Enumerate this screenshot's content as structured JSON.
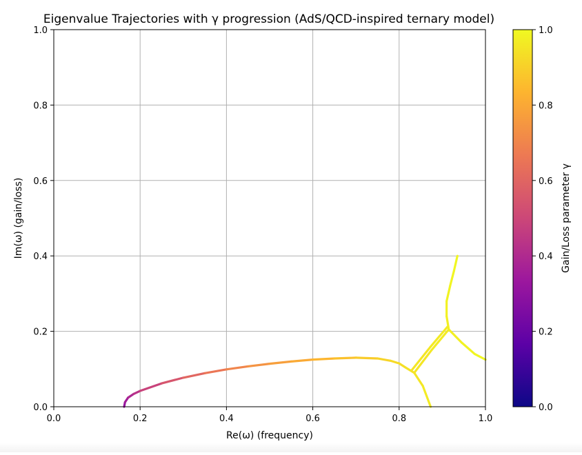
{
  "chart_data": {
    "type": "line",
    "title": "Eigenvalue Trajectories with γ progression (AdS/QCD-inspired ternary model)",
    "xlabel": "Re(ω)  (frequency)",
    "ylabel": "Im(ω)  (gain/loss)",
    "xlim": [
      0.0,
      1.0
    ],
    "ylim": [
      0.0,
      1.0
    ],
    "xticks": [
      "0.0",
      "0.2",
      "0.4",
      "0.6",
      "0.8",
      "1.0"
    ],
    "yticks": [
      "0.0",
      "0.2",
      "0.4",
      "0.6",
      "0.8",
      "1.0"
    ],
    "grid": true,
    "colorbar": {
      "label": "Gain/Loss parameter γ",
      "range": [
        0.0,
        1.0
      ],
      "ticks": [
        "0.0",
        "0.2",
        "0.4",
        "0.6",
        "0.8",
        "1.0"
      ],
      "colormap": "plasma",
      "colors": [
        "#0d0887",
        "#5c01a6",
        "#9c179e",
        "#cc4778",
        "#ed7953",
        "#fdb42f",
        "#f0f921"
      ]
    },
    "series": [
      {
        "points": [
          [
            0.163,
            0.0,
            0.3
          ],
          [
            0.165,
            0.012,
            0.33
          ],
          [
            0.172,
            0.024,
            0.37
          ],
          [
            0.185,
            0.034,
            0.41
          ],
          [
            0.2,
            0.042,
            0.45
          ],
          [
            0.25,
            0.062,
            0.52
          ],
          [
            0.3,
            0.077,
            0.58
          ],
          [
            0.35,
            0.089,
            0.63
          ],
          [
            0.4,
            0.099,
            0.68
          ],
          [
            0.45,
            0.107,
            0.72
          ],
          [
            0.5,
            0.114,
            0.76
          ],
          [
            0.55,
            0.12,
            0.79
          ],
          [
            0.6,
            0.125,
            0.82
          ],
          [
            0.65,
            0.128,
            0.85
          ],
          [
            0.7,
            0.13,
            0.88
          ],
          [
            0.75,
            0.128,
            0.9
          ],
          [
            0.78,
            0.122,
            0.92
          ],
          [
            0.8,
            0.115,
            0.93
          ],
          [
            0.815,
            0.104,
            0.94
          ],
          [
            0.835,
            0.09,
            0.95
          ]
        ]
      },
      {
        "points": [
          [
            0.835,
            0.09,
            0.95
          ],
          [
            0.855,
            0.055,
            0.96
          ],
          [
            0.873,
            0.0,
            0.97
          ]
        ]
      },
      {
        "points": [
          [
            0.835,
            0.09,
            0.95
          ],
          [
            0.875,
            0.15,
            0.96
          ],
          [
            0.915,
            0.205,
            0.97
          ]
        ]
      },
      {
        "points": [
          [
            0.83,
            0.098,
            0.95
          ],
          [
            0.872,
            0.158,
            0.96
          ],
          [
            0.912,
            0.212,
            0.97
          ]
        ]
      },
      {
        "points": [
          [
            0.915,
            0.205,
            0.97
          ],
          [
            0.945,
            0.17,
            0.98
          ],
          [
            0.975,
            0.14,
            0.99
          ],
          [
            1.0,
            0.125,
            1.0
          ]
        ]
      },
      {
        "points": [
          [
            0.915,
            0.205,
            0.97
          ],
          [
            0.91,
            0.24,
            0.98
          ],
          [
            0.91,
            0.28,
            0.98
          ],
          [
            0.918,
            0.32,
            0.99
          ],
          [
            0.927,
            0.36,
            0.99
          ],
          [
            0.935,
            0.4,
            1.0
          ]
        ]
      }
    ]
  }
}
